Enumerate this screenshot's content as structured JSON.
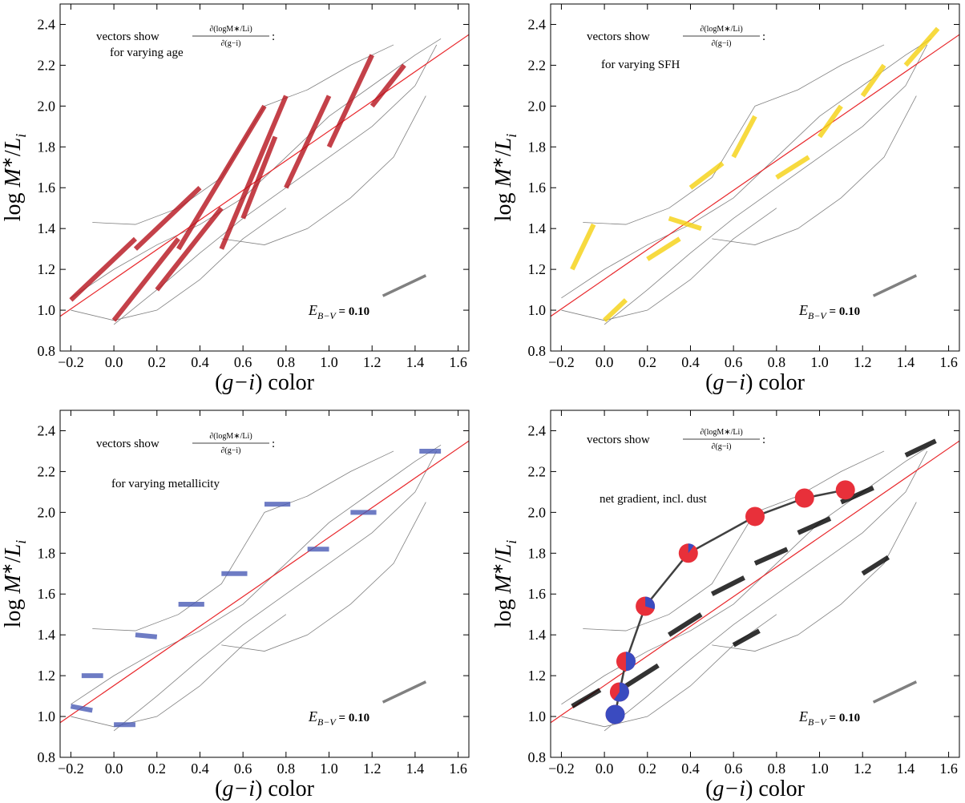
{
  "common": {
    "xlim": [
      -0.25,
      1.65
    ],
    "ylim": [
      0.8,
      2.5
    ],
    "xticks": [
      {
        "value": -0.2,
        "label": "−0.2"
      },
      {
        "value": 0,
        "label": "0.0"
      },
      0.2,
      0.4,
      0.6,
      0.8,
      {
        "value": 1,
        "label": "1.0"
      },
      1.2,
      1.4,
      1.6
    ],
    "yticks": [
      0.8,
      {
        "value": 1,
        "label": "1.0"
      },
      1.2,
      1.4,
      1.6,
      1.8,
      {
        "value": 2,
        "label": "2.0"
      },
      2.2,
      2.4
    ],
    "xlabel": [
      "(",
      "g−i",
      ") color"
    ],
    "ylabel": [
      "log ",
      "M",
      "∗",
      "/",
      "L",
      "i"
    ],
    "annotation": {
      "prefix": "vectors show ",
      "numerator": "∂(logM∗/Li)",
      "denominator": "∂(g−i)",
      "suffix": ":"
    },
    "fit_line": {
      "color": "#e8262a",
      "x": [
        -0.25,
        1.65
      ],
      "values": [
        0.97,
        2.35
      ]
    },
    "dust_vector": {
      "color": "#808080",
      "x": [
        1.25,
        1.45
      ],
      "values": [
        1.07,
        1.17
      ],
      "label": {
        "symbol": "E",
        "subscript": "B−V",
        "text": " = 0.10"
      }
    },
    "model_grid": {
      "color": "#808080",
      "tracks": [
        {
          "x": [
            -0.2,
            0,
            0.2,
            0.4,
            0.6,
            0.8,
            1.0,
            1.2,
            1.4,
            1.52
          ],
          "values": [
            1.06,
            1.2,
            1.32,
            1.42,
            1.55,
            1.75,
            1.95,
            2.1,
            2.25,
            2.33
          ]
        },
        {
          "x": [
            0,
            0.2,
            0.4,
            0.6,
            0.8,
            1.0,
            1.2,
            1.4,
            1.5
          ],
          "values": [
            0.93,
            1.1,
            1.28,
            1.45,
            1.6,
            1.75,
            1.9,
            2.1,
            2.3
          ]
        },
        {
          "x": [
            -0.1,
            0.1,
            0.3,
            0.5,
            0.7,
            0.9,
            1.1,
            1.3
          ],
          "values": [
            1.43,
            1.42,
            1.5,
            1.65,
            2.0,
            2.08,
            2.2,
            2.3
          ]
        },
        {
          "x": [
            0.5,
            0.7,
            0.9,
            1.1,
            1.3,
            1.45
          ],
          "values": [
            1.35,
            1.32,
            1.4,
            1.55,
            1.75,
            2.05
          ]
        },
        {
          "x": [
            -0.2,
            0,
            0.2,
            0.4,
            0.6,
            0.8
          ],
          "values": [
            1.0,
            0.95,
            1.0,
            1.15,
            1.35,
            1.5
          ]
        }
      ]
    }
  },
  "chart_data": [
    {
      "type": "vectors",
      "label": "for varying age",
      "color": "#b5121b",
      "vectors": [
        {
          "x": [
            0.0,
            0.3
          ],
          "values": [
            0.95,
            1.35
          ]
        },
        {
          "x": [
            0.3,
            0.7
          ],
          "values": [
            1.3,
            2.0
          ]
        },
        {
          "x": [
            0.5,
            0.8
          ],
          "values": [
            1.3,
            2.05
          ]
        },
        {
          "x": [
            0.8,
            1.0
          ],
          "values": [
            1.6,
            2.05
          ]
        },
        {
          "x": [
            1.0,
            1.2
          ],
          "values": [
            1.8,
            2.25
          ]
        },
        {
          "x": [
            -0.2,
            0.1
          ],
          "values": [
            1.05,
            1.35
          ]
        },
        {
          "x": [
            0.1,
            0.4
          ],
          "values": [
            1.3,
            1.6
          ]
        },
        {
          "x": [
            0.6,
            0.75
          ],
          "values": [
            1.45,
            1.85
          ]
        },
        {
          "x": [
            1.2,
            1.35
          ],
          "values": [
            2.0,
            2.2
          ]
        },
        {
          "x": [
            0.2,
            0.5
          ],
          "values": [
            1.1,
            1.5
          ]
        }
      ]
    },
    {
      "type": "vectors",
      "label": "for varying SFH",
      "color": "#f5d10f",
      "vectors": [
        {
          "x": [
            -0.15,
            -0.05
          ],
          "values": [
            1.2,
            1.42
          ]
        },
        {
          "x": [
            0.0,
            0.1
          ],
          "values": [
            0.95,
            1.05
          ]
        },
        {
          "x": [
            0.2,
            0.35
          ],
          "values": [
            1.25,
            1.35
          ]
        },
        {
          "x": [
            0.4,
            0.55
          ],
          "values": [
            1.6,
            1.72
          ]
        },
        {
          "x": [
            0.6,
            0.7
          ],
          "values": [
            1.75,
            1.95
          ]
        },
        {
          "x": [
            0.8,
            0.95
          ],
          "values": [
            1.65,
            1.75
          ]
        },
        {
          "x": [
            1.0,
            1.1
          ],
          "values": [
            1.85,
            2.0
          ]
        },
        {
          "x": [
            1.2,
            1.3
          ],
          "values": [
            2.05,
            2.2
          ]
        },
        {
          "x": [
            1.4,
            1.55
          ],
          "values": [
            2.2,
            2.38
          ]
        },
        {
          "x": [
            0.3,
            0.45
          ],
          "values": [
            1.45,
            1.4
          ]
        }
      ]
    },
    {
      "type": "vectors",
      "label": "for varying metallicity",
      "color": "#4a5bb5",
      "vectors": [
        {
          "x": [
            -0.15,
            -0.05
          ],
          "values": [
            1.2,
            1.2
          ]
        },
        {
          "x": [
            -0.2,
            -0.1
          ],
          "values": [
            1.05,
            1.03
          ]
        },
        {
          "x": [
            0.1,
            0.2
          ],
          "values": [
            1.4,
            1.39
          ]
        },
        {
          "x": [
            0.3,
            0.42
          ],
          "values": [
            1.55,
            1.55
          ]
        },
        {
          "x": [
            0.7,
            0.82
          ],
          "values": [
            2.04,
            2.04
          ]
        },
        {
          "x": [
            0.9,
            1.0
          ],
          "values": [
            1.82,
            1.82
          ]
        },
        {
          "x": [
            1.1,
            1.22
          ],
          "values": [
            2.0,
            2.0
          ]
        },
        {
          "x": [
            1.42,
            1.52
          ],
          "values": [
            2.3,
            2.3
          ]
        },
        {
          "x": [
            0.5,
            0.62
          ],
          "values": [
            1.7,
            1.7
          ]
        },
        {
          "x": [
            0.0,
            0.1
          ],
          "values": [
            0.96,
            0.96
          ]
        }
      ]
    },
    {
      "type": "vectors",
      "label": "net gradient, incl. dust",
      "color": "#000000",
      "vectors": [
        {
          "x": [
            -0.15,
            -0.02
          ],
          "values": [
            1.05,
            1.13
          ]
        },
        {
          "x": [
            0.1,
            0.25
          ],
          "values": [
            1.15,
            1.25
          ]
        },
        {
          "x": [
            0.3,
            0.45
          ],
          "values": [
            1.4,
            1.5
          ]
        },
        {
          "x": [
            0.5,
            0.65
          ],
          "values": [
            1.6,
            1.68
          ]
        },
        {
          "x": [
            0.7,
            0.85
          ],
          "values": [
            1.75,
            1.82
          ]
        },
        {
          "x": [
            0.9,
            1.05
          ],
          "values": [
            1.9,
            1.97
          ]
        },
        {
          "x": [
            1.1,
            1.25
          ],
          "values": [
            2.05,
            2.12
          ]
        },
        {
          "x": [
            1.4,
            1.54
          ],
          "values": [
            2.28,
            2.35
          ]
        },
        {
          "x": [
            0.6,
            0.72
          ],
          "values": [
            1.35,
            1.42
          ]
        },
        {
          "x": [
            1.2,
            1.32
          ],
          "values": [
            1.7,
            1.78
          ]
        }
      ],
      "tracks_circles": {
        "curve_color": "#404040",
        "colors": [
          "#e8303a",
          "#3a4bc0"
        ],
        "x": [
          0.05,
          0.07,
          0.1,
          0.19,
          0.39,
          0.7,
          0.93,
          1.12
        ],
        "values": [
          1.01,
          1.12,
          1.27,
          1.54,
          1.8,
          1.98,
          2.07,
          2.11
        ],
        "blue_fraction": [
          1,
          0.6,
          0.5,
          0.3,
          0.1,
          0,
          0,
          0
        ]
      }
    }
  ]
}
